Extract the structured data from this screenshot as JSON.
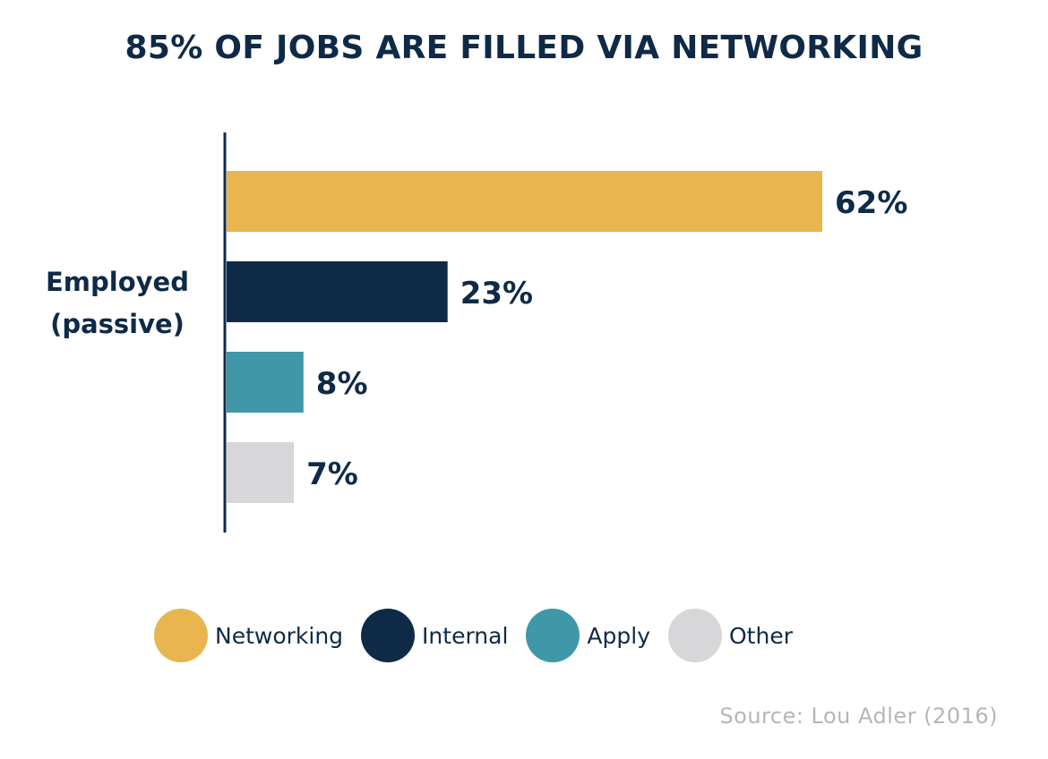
{
  "chart_data": {
    "type": "bar",
    "orientation": "horizontal",
    "title": "85% OF JOBS ARE FILLED VIA NETWORKING",
    "category_label_lines": [
      "Employed",
      "(passive)"
    ],
    "series": [
      {
        "name": "Networking",
        "value": 62,
        "label": "62%",
        "color": "#e8b54f"
      },
      {
        "name": "Internal",
        "value": 23,
        "label": "23%",
        "color": "#0e2a47"
      },
      {
        "name": "Apply",
        "value": 8,
        "label": "8%",
        "color": "#3f97a8"
      },
      {
        "name": "Other",
        "value": 7,
        "label": "7%",
        "color": "#d7d7d9"
      }
    ],
    "xlim": [
      0,
      62
    ],
    "grid": false,
    "legend_position": "bottom",
    "source": "Source: Lou Adler (2016)"
  }
}
